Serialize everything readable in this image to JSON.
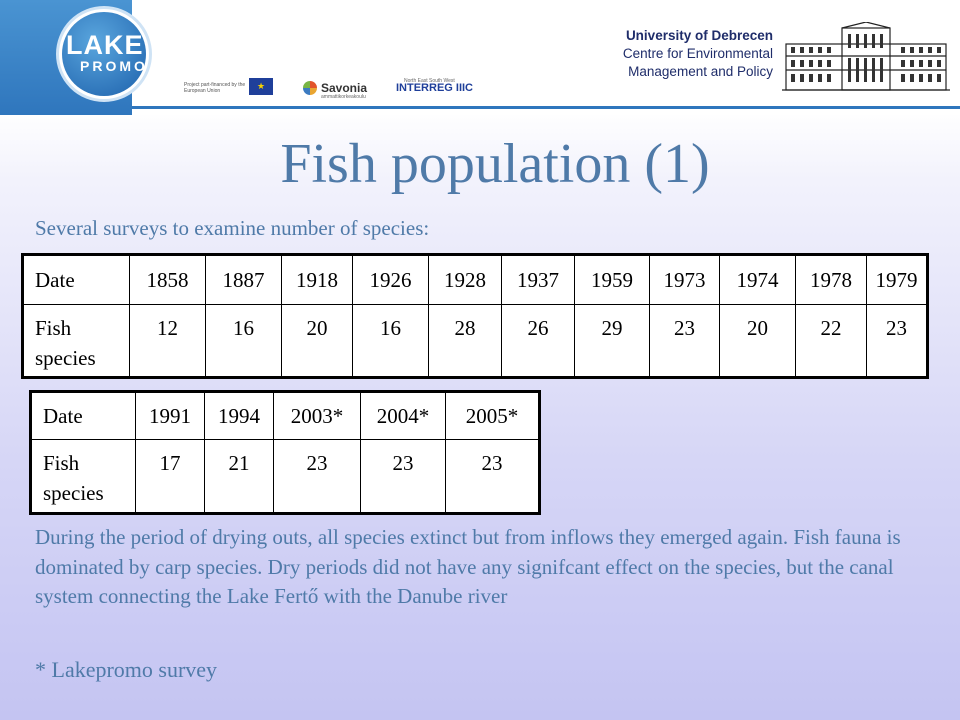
{
  "header": {
    "logo_word1": "LAKE",
    "logo_word2": "PROMO",
    "eu_text": "Project part-financed by the European Union",
    "savonia": "Savonia",
    "savonia_sub": "ammattikorkeakoulu",
    "interreg": "INTERREG IIIC",
    "interreg_sub": "North East South West",
    "university": "University of Debrecen",
    "centre_line1": "Centre for Environmental",
    "centre_line2": "Management and Policy"
  },
  "slide": {
    "title": "Fish population (1)",
    "intro": "Several surveys to examine number of species:",
    "paragraph": "During the period of drying outs, all species extinct but from inflows they emerged again. Fish fauna is dominated by carp species. Dry periods did not have any signifcant effect on the species, but the canal system connecting the Lake Fertő with the Danube river",
    "note": "* Lakepromo survey"
  },
  "table1": {
    "row_label_date": "Date",
    "row_label_species": "Fish species",
    "dates": [
      "1858",
      "1887",
      "1918",
      "1926",
      "1928",
      "1937",
      "1959",
      "1973",
      "1974",
      "1978",
      "1979"
    ],
    "species": [
      "12",
      "16",
      "20",
      "16",
      "28",
      "26",
      "29",
      "23",
      "20",
      "22",
      "23"
    ]
  },
  "table2": {
    "row_label_date": "Date",
    "row_label_species": "Fish species",
    "dates": [
      "1991",
      "1994",
      "2003*",
      "2004*",
      "2005*"
    ],
    "species": [
      "17",
      "21",
      "23",
      "23",
      "23"
    ]
  },
  "colors": {
    "title_blue": "#4f7aa8",
    "header_blue": "#2f76bd"
  }
}
